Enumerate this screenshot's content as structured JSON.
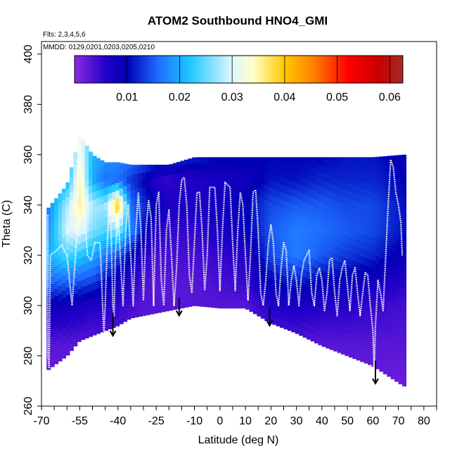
{
  "chart_data": {
    "type": "heatmap",
    "title": "ATOM2 Southbound HNO4_GMI",
    "flights_label": "Flts: 2,3,4,5,6",
    "dates_label": "MMDD: 0129,0201,0203,0205,0210",
    "xlabel": "Latitude (deg N)",
    "ylabel": "Theta (C)",
    "xlim": [
      -70,
      85
    ],
    "ylim": [
      260,
      405
    ],
    "x_ticks": [
      -70,
      -55,
      -40,
      -25,
      -10,
      0,
      10,
      20,
      30,
      40,
      50,
      60,
      70,
      80
    ],
    "x_tick_labels": [
      "-70",
      "-55",
      "-40",
      "-25",
      "-10",
      "0",
      "10",
      "20",
      "30",
      "40",
      "50",
      "60",
      "70",
      "80"
    ],
    "x_minor_ticks": [
      -65,
      -60,
      -50,
      -45,
      -35,
      -30,
      -20,
      -15,
      -5,
      5,
      15,
      25,
      35,
      45,
      55,
      65,
      75,
      85
    ],
    "y_ticks": [
      260,
      280,
      300,
      320,
      340,
      360,
      380,
      400
    ],
    "y_tick_labels": [
      "260",
      "280",
      "300",
      "320",
      "340",
      "360",
      "380",
      "400"
    ],
    "colorbar": {
      "range": [
        0.0,
        0.0625
      ],
      "ticks": [
        0.01,
        0.02,
        0.03,
        0.04,
        0.05,
        0.06
      ],
      "tick_labels": [
        "0.01",
        "0.02",
        "0.03",
        "0.04",
        "0.05",
        "0.06"
      ],
      "separators": [
        0.01,
        0.02,
        0.03,
        0.04,
        0.05,
        0.06
      ],
      "stops": [
        {
          "v": 0.0,
          "color": "#8a2be2"
        },
        {
          "v": 0.006,
          "color": "#2200c8"
        },
        {
          "v": 0.01,
          "color": "#0000b4"
        },
        {
          "v": 0.016,
          "color": "#1e6eff"
        },
        {
          "v": 0.022,
          "color": "#1ec8ff"
        },
        {
          "v": 0.03,
          "color": "#dff6ff"
        },
        {
          "v": 0.034,
          "color": "#ffffc8"
        },
        {
          "v": 0.04,
          "color": "#ffc800"
        },
        {
          "v": 0.046,
          "color": "#ff7800"
        },
        {
          "v": 0.052,
          "color": "#ff0000"
        },
        {
          "v": 0.058,
          "color": "#c80000"
        },
        {
          "v": 0.0625,
          "color": "#a52a2a"
        }
      ]
    },
    "field": {
      "latitudes": [
        -68,
        -60,
        -55,
        -50,
        -45,
        -40,
        -35,
        -30,
        -25,
        -20,
        -10,
        0,
        10,
        20,
        30,
        40,
        50,
        60,
        72
      ],
      "ground_theta": [
        274,
        280,
        286,
        288,
        290,
        292,
        295,
        296,
        297,
        298,
        300,
        299,
        299,
        293,
        289,
        284,
        280,
        276,
        268
      ],
      "top_theta": [
        338,
        348,
        368,
        360,
        357,
        357,
        356,
        356,
        356,
        356,
        359,
        359,
        359,
        359,
        359,
        359,
        359,
        359,
        360
      ],
      "theta_levels": [
        270,
        285,
        300,
        310,
        320,
        330,
        340,
        350,
        360
      ],
      "values": [
        [
          0.002,
          0.003,
          0.009,
          0.016,
          0.02,
          0.017,
          0.016,
          0.016,
          0.016
        ],
        [
          0.002,
          0.003,
          0.008,
          0.016,
          0.024,
          0.03,
          0.028,
          0.02,
          0.018
        ],
        [
          0.002,
          0.003,
          0.007,
          0.015,
          0.022,
          0.031,
          0.036,
          0.035,
          0.033
        ],
        [
          0.002,
          0.003,
          0.006,
          0.014,
          0.02,
          0.026,
          0.028,
          0.02,
          0.021
        ],
        [
          0.002,
          0.003,
          0.006,
          0.011,
          0.017,
          0.024,
          0.027,
          0.016,
          0.019
        ],
        [
          0.002,
          0.003,
          0.005,
          0.008,
          0.014,
          0.027,
          0.041,
          0.016,
          0.018
        ],
        [
          0.002,
          0.003,
          0.004,
          0.006,
          0.01,
          0.018,
          0.016,
          0.013,
          0.017
        ],
        [
          0.002,
          0.003,
          0.003,
          0.004,
          0.006,
          0.011,
          0.013,
          0.01,
          0.016
        ],
        [
          0.002,
          0.0025,
          0.003,
          0.003,
          0.004,
          0.006,
          0.009,
          0.006,
          0.014
        ],
        [
          0.002,
          0.0025,
          0.003,
          0.003,
          0.004,
          0.005,
          0.007,
          0.005,
          0.014
        ],
        [
          0.002,
          0.0025,
          0.003,
          0.003,
          0.004,
          0.005,
          0.007,
          0.006,
          0.012
        ],
        [
          0.002,
          0.0025,
          0.003,
          0.004,
          0.005,
          0.007,
          0.008,
          0.007,
          0.011
        ],
        [
          0.002,
          0.0025,
          0.003,
          0.005,
          0.006,
          0.009,
          0.01,
          0.008,
          0.01
        ],
        [
          0.002,
          0.003,
          0.006,
          0.01,
          0.014,
          0.015,
          0.014,
          0.011,
          0.01
        ],
        [
          0.002,
          0.003,
          0.007,
          0.012,
          0.017,
          0.017,
          0.015,
          0.011,
          0.01
        ],
        [
          0.002,
          0.003,
          0.006,
          0.01,
          0.015,
          0.016,
          0.015,
          0.012,
          0.01
        ],
        [
          0.002,
          0.003,
          0.006,
          0.009,
          0.013,
          0.015,
          0.014,
          0.012,
          0.011
        ],
        [
          0.002,
          0.003,
          0.005,
          0.008,
          0.012,
          0.014,
          0.014,
          0.012,
          0.011
        ],
        [
          0.002,
          0.003,
          0.004,
          0.006,
          0.009,
          0.011,
          0.011,
          0.01,
          0.009
        ]
      ]
    },
    "flight_track": {
      "description": "white dotted aircraft profiles",
      "points": [
        [
          -67.5,
          336
        ],
        [
          -67.5,
          280
        ],
        [
          -67,
          275
        ],
        [
          -66.5,
          320
        ],
        [
          -64,
          322
        ],
        [
          -62,
          324
        ],
        [
          -60,
          320
        ],
        [
          -58,
          300
        ],
        [
          -56,
          330
        ],
        [
          -55.5,
          360
        ],
        [
          -55,
          366
        ],
        [
          -54,
          350
        ],
        [
          -53,
          335
        ],
        [
          -52,
          320
        ],
        [
          -50.5,
          318
        ],
        [
          -49,
          325
        ],
        [
          -47,
          325
        ],
        [
          -46,
          300
        ],
        [
          -45.5,
          288
        ],
        [
          -45,
          300
        ],
        [
          -44,
          330
        ],
        [
          -43,
          342
        ],
        [
          -42,
          300
        ],
        [
          -41.5,
          296
        ],
        [
          -41,
          320
        ],
        [
          -40,
          338
        ],
        [
          -39,
          318
        ],
        [
          -38,
          300
        ],
        [
          -37,
          330
        ],
        [
          -36,
          340
        ],
        [
          -35,
          320
        ],
        [
          -34,
          300
        ],
        [
          -33,
          330
        ],
        [
          -32,
          345
        ],
        [
          -31,
          330
        ],
        [
          -30,
          302
        ],
        [
          -29,
          330
        ],
        [
          -28,
          342
        ],
        [
          -27,
          335
        ],
        [
          -26,
          300
        ],
        [
          -25,
          340
        ],
        [
          -24,
          345
        ],
        [
          -23,
          310
        ],
        [
          -22,
          300
        ],
        [
          -21,
          330
        ],
        [
          -20,
          338
        ],
        [
          -19,
          320
        ],
        [
          -18,
          300
        ],
        [
          -17,
          315
        ],
        [
          -16,
          340
        ],
        [
          -15,
          350
        ],
        [
          -14,
          351
        ],
        [
          -13,
          340
        ],
        [
          -12,
          312
        ],
        [
          -11,
          305
        ],
        [
          -10,
          325
        ],
        [
          -9,
          345
        ],
        [
          -8,
          345
        ],
        [
          -7,
          330
        ],
        [
          -6,
          306
        ],
        [
          -5,
          320
        ],
        [
          -4,
          347
        ],
        [
          -2,
          347
        ],
        [
          -1,
          330
        ],
        [
          0,
          306
        ],
        [
          1,
          330
        ],
        [
          2,
          349
        ],
        [
          4,
          347
        ],
        [
          5,
          325
        ],
        [
          6,
          306
        ],
        [
          7,
          330
        ],
        [
          8,
          345
        ],
        [
          9,
          340
        ],
        [
          10,
          320
        ],
        [
          11,
          302
        ],
        [
          12,
          320
        ],
        [
          13,
          345
        ],
        [
          14,
          346
        ],
        [
          15,
          330
        ],
        [
          16,
          305
        ],
        [
          17,
          300
        ],
        [
          18,
          310
        ],
        [
          19,
          325
        ],
        [
          20,
          332
        ],
        [
          21,
          325
        ],
        [
          22,
          305
        ],
        [
          23,
          300
        ],
        [
          24,
          315
        ],
        [
          25,
          325
        ],
        [
          26,
          322
        ],
        [
          27,
          300
        ],
        [
          28,
          310
        ],
        [
          29,
          316
        ],
        [
          30,
          310
        ],
        [
          31,
          300
        ],
        [
          32,
          312
        ],
        [
          33,
          318
        ],
        [
          35,
          322
        ],
        [
          36,
          305
        ],
        [
          37,
          300
        ],
        [
          38,
          312
        ],
        [
          39,
          315
        ],
        [
          40,
          310
        ],
        [
          41,
          298
        ],
        [
          42,
          305
        ],
        [
          43,
          318
        ],
        [
          44,
          319
        ],
        [
          45,
          305
        ],
        [
          46,
          296
        ],
        [
          47,
          310
        ],
        [
          48,
          315
        ],
        [
          49,
          318
        ],
        [
          50,
          308
        ],
        [
          51,
          298
        ],
        [
          52,
          312
        ],
        [
          53,
          315
        ],
        [
          54,
          305
        ],
        [
          55,
          296
        ],
        [
          56,
          305
        ],
        [
          57,
          313
        ],
        [
          58,
          312
        ],
        [
          59,
          300
        ],
        [
          60,
          290
        ],
        [
          60.5,
          274
        ],
        [
          61,
          292
        ],
        [
          62,
          310
        ],
        [
          63,
          305
        ],
        [
          64,
          298
        ],
        [
          66,
          340
        ],
        [
          67,
          358
        ],
        [
          68,
          355
        ],
        [
          69,
          345
        ],
        [
          70,
          340
        ],
        [
          71,
          333
        ],
        [
          71.5,
          320
        ]
      ]
    },
    "annotations": [
      {
        "type": "arrow",
        "x": -42,
        "from_theta": 297,
        "to_theta": 288
      },
      {
        "type": "arrow",
        "x": -16,
        "from_theta": 303,
        "to_theta": 296
      },
      {
        "type": "arrow",
        "x": 19.5,
        "from_theta": 299,
        "to_theta": 292
      },
      {
        "type": "arrow",
        "x": 61,
        "from_theta": 278,
        "to_theta": 269
      }
    ]
  }
}
